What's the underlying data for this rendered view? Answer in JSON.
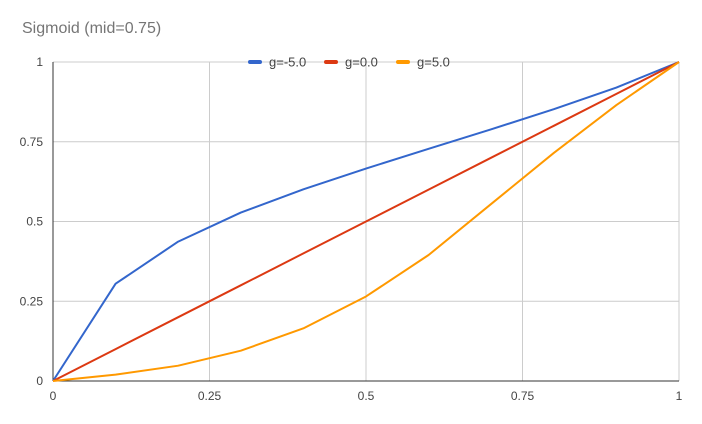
{
  "chart_data": {
    "type": "line",
    "title": "Sigmoid (mid=0.75)",
    "xlabel": "",
    "ylabel": "",
    "xlim": [
      0,
      1
    ],
    "ylim": [
      0,
      1
    ],
    "x_ticks": [
      0,
      0.25,
      0.5,
      0.75,
      1
    ],
    "x_tick_labels": [
      "0",
      "0.25",
      "0.5",
      "0.75",
      "1"
    ],
    "y_ticks": [
      0,
      0.25,
      0.5,
      0.75,
      1
    ],
    "y_tick_labels": [
      "0",
      "0.25",
      "0.5",
      "0.75",
      "1"
    ],
    "grid": true,
    "legend_position": "top",
    "x": [
      0,
      0.1,
      0.2,
      0.3,
      0.4,
      0.5,
      0.6,
      0.7,
      0.8,
      0.9,
      1.0
    ],
    "series": [
      {
        "name": "g=-5.0",
        "color": "#3366cc",
        "values": [
          0,
          0.305,
          0.437,
          0.528,
          0.601,
          0.666,
          0.728,
          0.789,
          0.852,
          0.92,
          1.0
        ]
      },
      {
        "name": "g=0.0",
        "color": "#dc3912",
        "values": [
          0,
          0.1,
          0.2,
          0.3,
          0.4,
          0.5,
          0.6,
          0.7,
          0.8,
          0.9,
          1.0
        ]
      },
      {
        "name": "g=5.0",
        "color": "#ff9900",
        "values": [
          0,
          0.02,
          0.048,
          0.095,
          0.165,
          0.265,
          0.395,
          0.555,
          0.715,
          0.865,
          1.0
        ]
      }
    ]
  }
}
